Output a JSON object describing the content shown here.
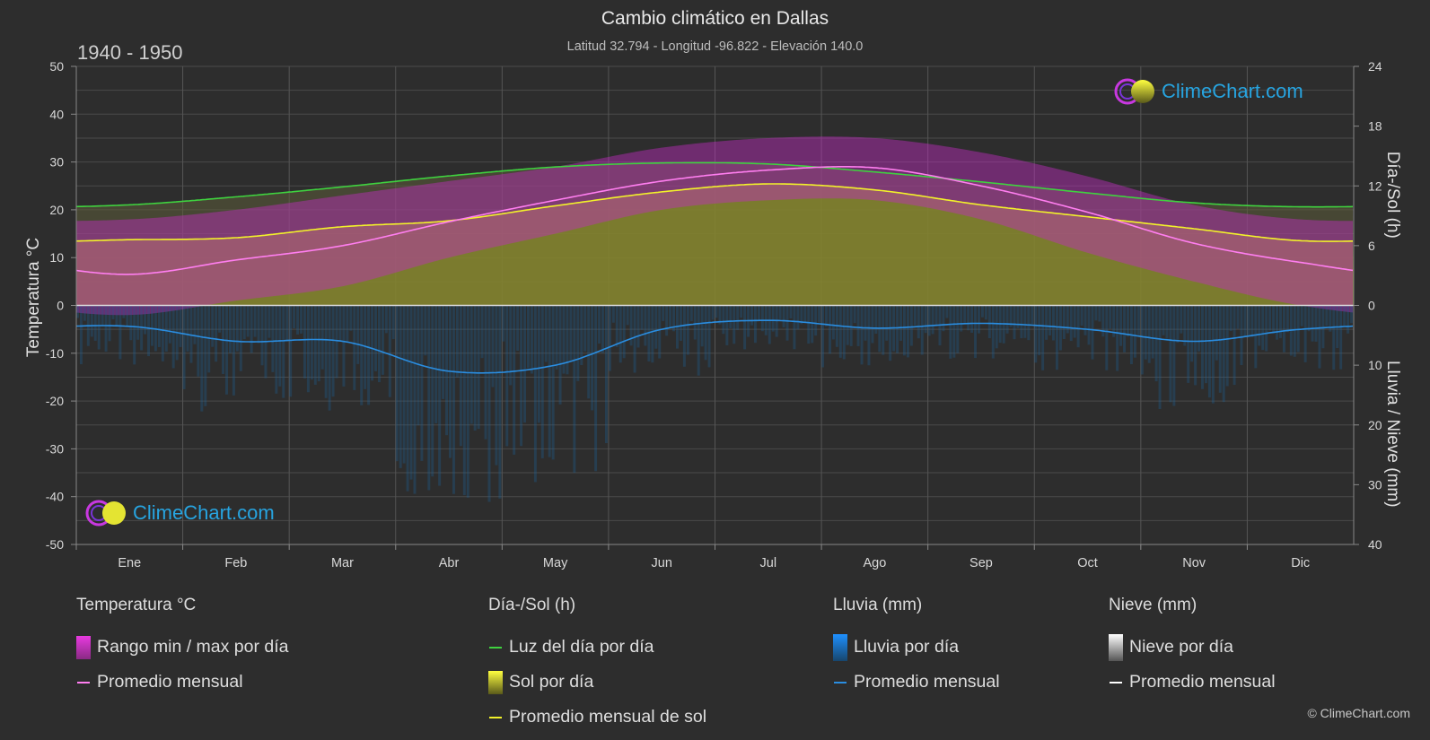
{
  "header": {
    "title": "Cambio climático en Dallas",
    "subtitle": "Latitud 32.794 - Longitud -96.822 - Elevación 140.0",
    "period": "1940 - 1950"
  },
  "brand": {
    "logo_text": "ClimeChart.com",
    "copyright": "© ClimeChart.com"
  },
  "colors": {
    "background": "#2d2d2d",
    "temp_range": "#d22fc8",
    "temp_avg": "#ff7ef0",
    "daylight": "#3fd23f",
    "sunshine": "#9c9c2a",
    "sunshine_avg": "#f2f22a",
    "rain": "#1f6fae",
    "rain_avg": "#2a8de0",
    "snow": "#cfcfcf",
    "snow_avg": "#ffffff"
  },
  "legend": {
    "temperature": {
      "title": "Temperatura °C",
      "items": [
        "Rango min / max por día",
        "Promedio mensual"
      ]
    },
    "daylight": {
      "title": "Día-/Sol (h)",
      "items": [
        "Luz del día por día",
        "Sol por día",
        "Promedio mensual de sol"
      ]
    },
    "rain": {
      "title": "Lluvia (mm)",
      "items": [
        "Lluvia por día",
        "Promedio mensual"
      ]
    },
    "snow": {
      "title": "Nieve (mm)",
      "items": [
        "Nieve por día",
        "Promedio mensual"
      ]
    }
  },
  "chart_data": {
    "type": "line",
    "title": "Cambio climático en Dallas",
    "months": [
      "Ene",
      "Feb",
      "Mar",
      "Abr",
      "May",
      "Jun",
      "Jul",
      "Ago",
      "Sep",
      "Oct",
      "Nov",
      "Dic"
    ],
    "axes": {
      "left": {
        "label": "Temperatura °C",
        "min": -50,
        "max": 50,
        "ticks": [
          50,
          40,
          30,
          20,
          10,
          0,
          -10,
          -20,
          -30,
          -40,
          -50
        ]
      },
      "right_top": {
        "label": "Día-/Sol (h)",
        "min": 0,
        "max": 24,
        "ticks": [
          24,
          18,
          12,
          6,
          0
        ]
      },
      "right_bottom": {
        "label": "Lluvia / Nieve (mm)",
        "min": 0,
        "max": 40,
        "ticks": [
          0,
          10,
          20,
          30,
          40
        ]
      }
    },
    "grid": true,
    "series": [
      {
        "name": "Luz del día por día",
        "axis": "right_top",
        "values": [
          10.1,
          10.9,
          11.9,
          13.0,
          13.9,
          14.3,
          14.2,
          13.4,
          12.4,
          11.3,
          10.3,
          9.9
        ]
      },
      {
        "name": "Promedio mensual de sol",
        "axis": "right_top",
        "values": [
          6.6,
          6.8,
          7.9,
          8.5,
          10.0,
          11.4,
          12.2,
          11.6,
          10.1,
          8.9,
          7.7,
          6.5
        ]
      },
      {
        "name": "Promedio mensual (temperatura)",
        "axis": "left",
        "values": [
          6.5,
          9.5,
          12.5,
          17.5,
          22.0,
          26.0,
          28.3,
          28.8,
          25.0,
          19.5,
          13.0,
          9.0
        ]
      },
      {
        "name": "Temperatura máx. diaria (aprox.)",
        "axis": "left",
        "values": [
          18,
          20,
          23,
          26,
          29,
          33,
          35,
          35,
          32,
          27,
          21,
          18
        ]
      },
      {
        "name": "Temperatura mín. diaria (aprox.)",
        "axis": "left",
        "values": [
          -2,
          1,
          4,
          10,
          15,
          20,
          22,
          22,
          18,
          11,
          5,
          0
        ]
      },
      {
        "name": "Promedio mensual (lluvia)",
        "axis": "right_bottom",
        "values": [
          3.5,
          6.0,
          6.0,
          11.0,
          10.0,
          4.0,
          2.5,
          3.8,
          3.0,
          4.0,
          6.0,
          4.0
        ]
      },
      {
        "name": "Promedio mensual (nieve)",
        "axis": "right_bottom",
        "values": [
          0,
          0,
          0,
          0,
          0,
          0,
          0,
          0,
          0,
          0,
          0,
          0
        ]
      }
    ]
  }
}
